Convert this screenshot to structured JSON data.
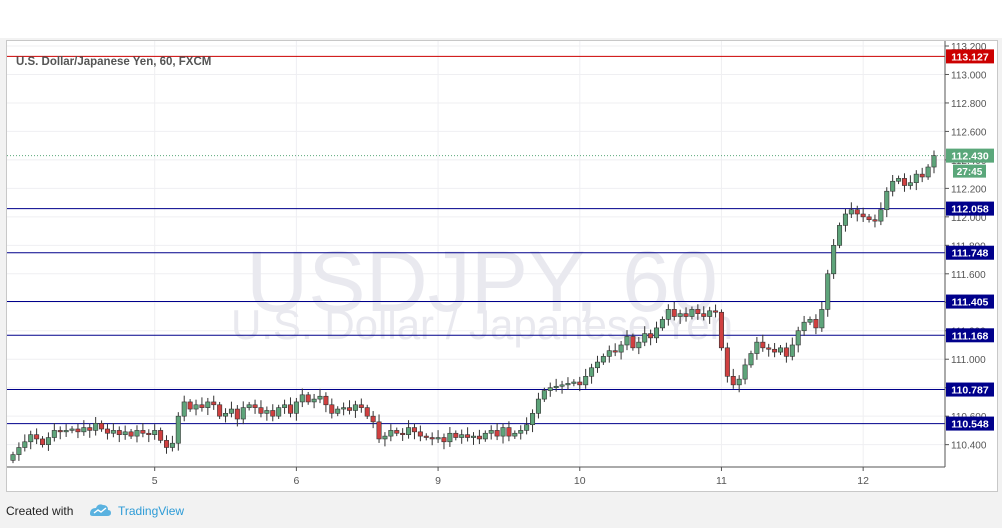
{
  "chart_data": {
    "type": "candlestick",
    "symbol_title": "U.S. Dollar/Japanese Yen, 60, FXCM",
    "watermark_main": "USDJPY, 60",
    "watermark_sub": "U.S. Dollar / Japanese Yen",
    "ylim": [
      110.25,
      113.2
    ],
    "y_ticks": [
      110.4,
      110.6,
      110.8,
      111.0,
      111.2,
      111.4,
      111.6,
      111.8,
      112.0,
      112.2,
      112.4,
      112.6,
      112.8,
      113.0,
      113.2
    ],
    "y_tick_labels": [
      "110.400",
      "110.600",
      "110.800",
      "111.000",
      "111.200",
      "111.400",
      "111.600",
      "111.800",
      "112.000",
      "112.200",
      "112.400",
      "112.600",
      "112.800",
      "113.000",
      "113.200"
    ],
    "x_ticks": [
      {
        "label": "5",
        "bar": 24
      },
      {
        "label": "6",
        "bar": 48
      },
      {
        "label": "9",
        "bar": 72
      },
      {
        "label": "10",
        "bar": 96
      },
      {
        "label": "11",
        "bar": 120
      },
      {
        "label": "12",
        "bar": 144
      }
    ],
    "horizontal_levels": [
      {
        "value": 113.127,
        "label": "113.127",
        "color": "#cc0000"
      },
      {
        "value": 112.058,
        "label": "112.058",
        "color": "#00008b"
      },
      {
        "value": 111.748,
        "label": "111.748",
        "color": "#00008b"
      },
      {
        "value": 111.405,
        "label": "111.405",
        "color": "#00008b"
      },
      {
        "value": 111.168,
        "label": "111.168",
        "color": "#00008b"
      },
      {
        "value": 110.787,
        "label": "110.787",
        "color": "#00008b"
      },
      {
        "value": 110.548,
        "label": "110.548",
        "color": "#00008b"
      }
    ],
    "last_price": {
      "value": 112.43,
      "label": "112.430",
      "countdown": "27:45",
      "color": "#5aa77a"
    },
    "candle_closes": [
      110.33,
      110.38,
      110.42,
      110.47,
      110.44,
      110.4,
      110.45,
      110.5,
      110.49,
      110.5,
      110.51,
      110.49,
      110.52,
      110.5,
      110.55,
      110.51,
      110.48,
      110.5,
      110.47,
      110.49,
      110.46,
      110.5,
      110.48,
      110.47,
      110.5,
      110.43,
      110.38,
      110.41,
      110.6,
      110.7,
      110.65,
      110.68,
      110.66,
      110.7,
      110.68,
      110.6,
      110.62,
      110.65,
      110.58,
      110.66,
      110.68,
      110.66,
      110.62,
      110.64,
      110.6,
      110.66,
      110.68,
      110.62,
      110.7,
      110.75,
      110.7,
      110.72,
      110.74,
      110.68,
      110.62,
      110.65,
      110.66,
      110.64,
      110.68,
      110.66,
      110.6,
      110.56,
      110.44,
      110.46,
      110.5,
      110.48,
      110.47,
      110.52,
      110.49,
      110.46,
      110.45,
      110.44,
      110.45,
      110.42,
      110.48,
      110.45,
      110.47,
      110.45,
      110.46,
      110.44,
      110.48,
      110.5,
      110.46,
      110.52,
      110.46,
      110.48,
      110.5,
      110.54,
      110.62,
      110.72,
      110.78,
      110.8,
      110.81,
      110.82,
      110.83,
      110.84,
      110.82,
      110.88,
      110.94,
      110.98,
      111.02,
      111.06,
      111.05,
      111.1,
      111.16,
      111.08,
      111.12,
      111.18,
      111.15,
      111.22,
      111.28,
      111.35,
      111.3,
      111.32,
      111.3,
      111.35,
      111.32,
      111.3,
      111.34,
      111.33,
      111.08,
      110.88,
      110.82,
      110.86,
      110.96,
      111.04,
      111.12,
      111.08,
      111.07,
      111.05,
      111.08,
      111.02,
      111.1,
      111.2,
      111.26,
      111.28,
      111.22,
      111.35,
      111.6,
      111.8,
      111.94,
      112.02,
      112.05,
      112.02,
      112.0,
      111.98,
      111.97,
      112.05,
      112.18,
      112.25,
      112.27,
      112.22,
      112.24,
      112.3,
      112.28,
      112.35,
      112.43
    ]
  }
}
